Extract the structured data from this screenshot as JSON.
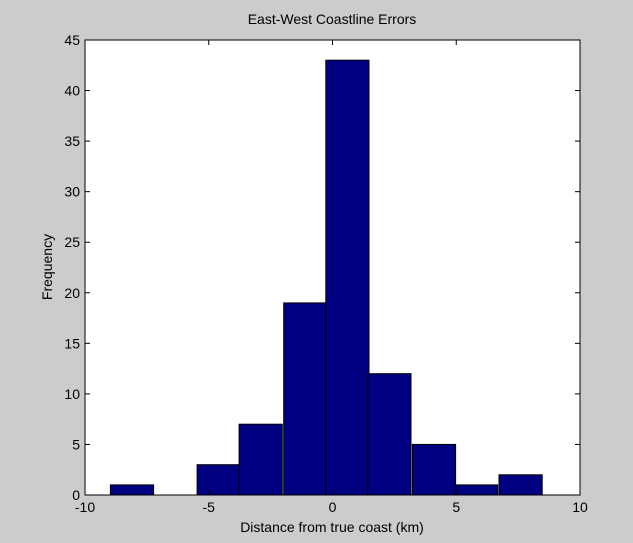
{
  "chart_data": {
    "type": "bar",
    "title": "East-West Coastline Errors",
    "xlabel": "Distance from true coast (km)",
    "ylabel": "Frequency",
    "xlim": [
      -10,
      10
    ],
    "ylim": [
      0,
      45
    ],
    "xticks": [
      -10,
      -5,
      0,
      5,
      10
    ],
    "yticks": [
      0,
      5,
      10,
      15,
      20,
      25,
      30,
      35,
      40,
      45
    ],
    "grid": false,
    "bar_color": "#000080",
    "bins": [
      {
        "center": -8.1,
        "value": 1
      },
      {
        "center": -6.4,
        "value": 0
      },
      {
        "center": -4.6,
        "value": 3
      },
      {
        "center": -2.9,
        "value": 7
      },
      {
        "center": -1.1,
        "value": 19
      },
      {
        "center": 0.6,
        "value": 43
      },
      {
        "center": 2.3,
        "value": 12
      },
      {
        "center": 4.1,
        "value": 5
      },
      {
        "center": 5.8,
        "value": 1
      },
      {
        "center": 7.6,
        "value": 2
      }
    ]
  }
}
